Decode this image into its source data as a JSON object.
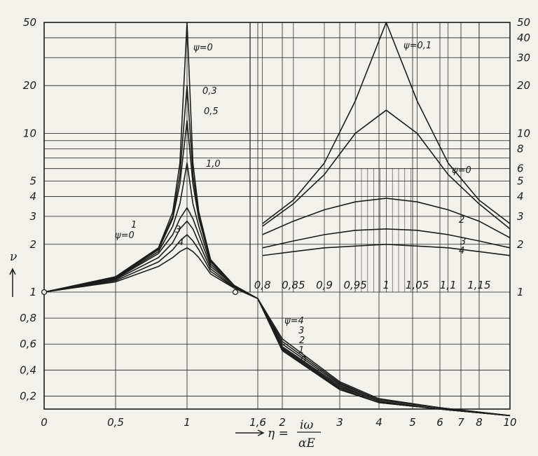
{
  "chart_data": [
    {
      "type": "line",
      "description": "Main panel: log y-axis nu vs piecewise x-axis eta = i*omega/alpha_E",
      "xlabel": "η = iω/αE",
      "ylabel": "ν",
      "x_ticks": [
        "0",
        "0,5",
        "1",
        "1,6",
        "2",
        "3",
        "4",
        "5",
        "6",
        "7",
        "8",
        "10"
      ],
      "y_ticks_left": [
        "0,2",
        "0,4",
        "0,6",
        "0,8",
        "1",
        "2",
        "3",
        "4",
        "5",
        "10",
        "20",
        "50"
      ],
      "y_ticks_right": [
        "1",
        "2",
        "3",
        "4",
        "5",
        "6",
        "8",
        "10",
        "20",
        "30",
        "40",
        "50"
      ],
      "ylim": [
        0.1,
        50
      ],
      "series": [
        {
          "name": "ψ=0",
          "x": [
            0,
            0.5,
            0.8,
            0.9,
            0.95,
            1.0,
            1.05,
            1.1,
            1.2,
            1.4,
            1.6,
            2,
            3,
            4,
            6,
            10
          ],
          "y": [
            1,
            1.25,
            1.9,
            3.2,
            6.5,
            50,
            6.5,
            3.2,
            1.6,
            1.1,
            0.95,
            0.55,
            0.25,
            0.15,
            0.1,
            0.05
          ]
        },
        {
          "name": "0,3",
          "x": [
            0,
            0.5,
            0.8,
            0.9,
            0.95,
            1.0,
            1.05,
            1.1,
            1.2,
            1.4,
            1.6,
            2,
            3,
            4,
            6,
            10
          ],
          "y": [
            1,
            1.24,
            1.88,
            3.0,
            5.5,
            20,
            5.5,
            3.0,
            1.58,
            1.1,
            0.95,
            0.55,
            0.25,
            0.15,
            0.1,
            0.05
          ]
        },
        {
          "name": "0,5",
          "x": [
            0,
            0.5,
            0.8,
            0.9,
            0.95,
            1.0,
            1.05,
            1.1,
            1.2,
            1.4,
            1.6,
            2,
            3,
            4,
            6,
            10
          ],
          "y": [
            1,
            1.23,
            1.85,
            2.9,
            4.8,
            12,
            4.8,
            2.9,
            1.55,
            1.1,
            0.95,
            0.56,
            0.26,
            0.15,
            0.1,
            0.05
          ]
        },
        {
          "name": "1,0",
          "x": [
            0,
            0.5,
            0.8,
            0.9,
            0.95,
            1.0,
            1.05,
            1.1,
            1.2,
            1.4,
            1.6,
            2,
            3,
            4,
            6,
            10
          ],
          "y": [
            1,
            1.22,
            1.8,
            2.6,
            3.6,
            6.5,
            3.6,
            2.6,
            1.5,
            1.1,
            0.95,
            0.57,
            0.27,
            0.16,
            0.1,
            0.05
          ]
        },
        {
          "name": "1",
          "x": [
            0,
            0.5,
            0.8,
            0.9,
            0.95,
            1.0,
            1.05,
            1.1,
            1.2,
            1.4,
            1.6,
            2,
            3,
            4,
            6,
            10
          ],
          "y": [
            1,
            1.21,
            1.75,
            2.3,
            2.9,
            3.4,
            2.9,
            2.3,
            1.45,
            1.1,
            0.95,
            0.58,
            0.28,
            0.16,
            0.1,
            0.05
          ]
        },
        {
          "name": "2",
          "x": [
            0,
            0.5,
            0.8,
            0.9,
            0.95,
            1.0,
            1.05,
            1.1,
            1.2,
            1.4,
            1.6,
            2,
            3,
            4,
            6,
            10
          ],
          "y": [
            1,
            1.2,
            1.65,
            2.05,
            2.5,
            2.8,
            2.5,
            2.05,
            1.4,
            1.08,
            0.95,
            0.6,
            0.29,
            0.17,
            0.11,
            0.05
          ]
        },
        {
          "name": "3",
          "x": [
            0,
            0.5,
            0.8,
            0.9,
            0.95,
            1.0,
            1.05,
            1.1,
            1.2,
            1.4,
            1.6,
            2,
            3,
            4,
            6,
            10
          ],
          "y": [
            1,
            1.18,
            1.55,
            1.85,
            2.1,
            2.3,
            2.1,
            1.85,
            1.35,
            1.07,
            0.95,
            0.62,
            0.3,
            0.17,
            0.11,
            0.05
          ]
        },
        {
          "name": "4",
          "x": [
            0,
            0.5,
            0.8,
            0.9,
            0.95,
            1.0,
            1.05,
            1.1,
            1.2,
            1.4,
            1.6,
            2,
            3,
            4,
            6,
            10
          ],
          "y": [
            1,
            1.16,
            1.45,
            1.65,
            1.8,
            1.9,
            1.8,
            1.65,
            1.3,
            1.06,
            0.95,
            0.64,
            0.31,
            0.18,
            0.11,
            0.05
          ]
        }
      ],
      "curve_labels_low": [
        "ψ=4",
        "3",
        "2",
        "1",
        "0"
      ]
    },
    {
      "type": "line",
      "description": "Inset panel: magnified resonance region, log y-axis (right scale)",
      "x_ticks": [
        "0,8",
        "0,85",
        "0,9",
        "0,95",
        "1",
        "1,05",
        "1,1",
        "1,15"
      ],
      "xlim": [
        0.78,
        1.2
      ],
      "ylim": [
        1,
        50
      ],
      "series": [
        {
          "name": "ψ=0,1",
          "x": [
            0.8,
            0.85,
            0.9,
            0.95,
            1.0,
            1.05,
            1.1,
            1.15,
            1.2
          ],
          "y": [
            2.7,
            3.8,
            6.5,
            16,
            50,
            16,
            6.5,
            3.8,
            2.7
          ]
        },
        {
          "name": "ψ=0",
          "x": [
            0.8,
            0.85,
            0.9,
            0.95,
            1.0,
            1.05,
            1.1,
            1.15,
            1.2
          ],
          "y": [
            2.6,
            3.6,
            5.5,
            10,
            14,
            10,
            5.5,
            3.6,
            2.5
          ]
        },
        {
          "name": "2",
          "x": [
            0.8,
            0.85,
            0.9,
            0.95,
            1.0,
            1.05,
            1.1,
            1.15,
            1.2
          ],
          "y": [
            2.3,
            2.8,
            3.3,
            3.7,
            3.9,
            3.7,
            3.3,
            2.8,
            2.2
          ]
        },
        {
          "name": "3",
          "x": [
            0.8,
            0.85,
            0.9,
            0.95,
            1.0,
            1.05,
            1.1,
            1.15,
            1.2
          ],
          "y": [
            1.9,
            2.1,
            2.3,
            2.45,
            2.5,
            2.45,
            2.3,
            2.1,
            1.9
          ]
        },
        {
          "name": "4",
          "x": [
            0.8,
            0.85,
            0.9,
            0.95,
            1.0,
            1.05,
            1.1,
            1.15,
            1.2
          ],
          "y": [
            1.7,
            1.8,
            1.9,
            1.95,
            2.0,
            1.95,
            1.9,
            1.8,
            1.7
          ]
        }
      ]
    }
  ],
  "labels": {
    "y_axis": "ν",
    "x_axis_eta": "η =",
    "x_axis_num": "iω",
    "x_axis_den": "αE",
    "psi0_top": "ψ=0",
    "psi03": "0,3",
    "psi05": "0,5",
    "psi10": "1,0",
    "left_1": "1",
    "left_psi0": "ψ=0",
    "left_3": "3",
    "left_4": "4",
    "inset_psi01": "ψ=0,1",
    "inset_psi0": "ψ=0",
    "inset_2": "2",
    "inset_3": "3",
    "inset_4": "4",
    "low_psi4": "ψ=4",
    "low_3": "3",
    "low_2": "2",
    "low_1": "1",
    "low_0": "0"
  },
  "colors": {
    "ink": "#1c1c1c",
    "paper": "#f3f1ec"
  }
}
